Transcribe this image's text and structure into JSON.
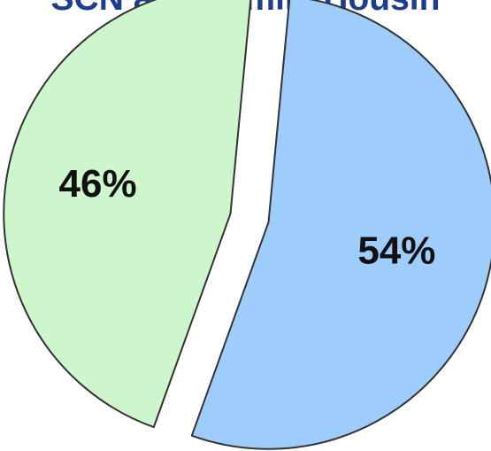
{
  "chart_data": {
    "type": "pie",
    "title": "SCN and Family Housin",
    "slices": [
      {
        "label": "54%",
        "value": 54,
        "color": "#9fcdfb"
      },
      {
        "label": "46%",
        "value": 46,
        "color": "#cdf6cd"
      }
    ],
    "exploded": true,
    "stroke_color": "#333333",
    "title_color": "#1f3c93"
  }
}
